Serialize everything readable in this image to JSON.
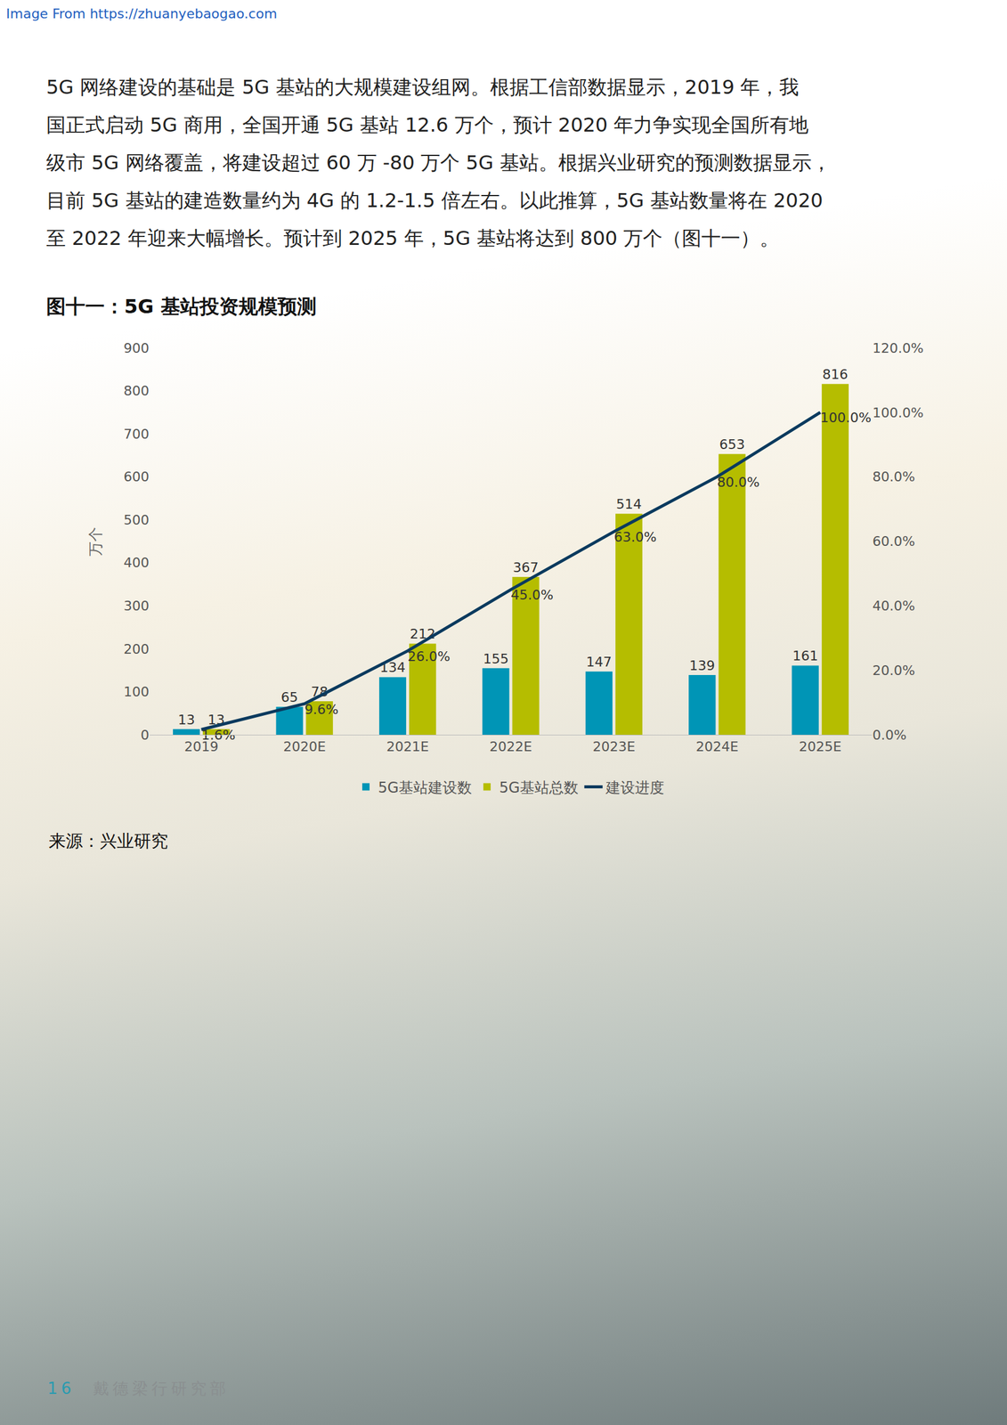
{
  "header": "Image From https://zhuanyebaogao.com",
  "paragraph": [
    "5G 网络建设的基础是 5G 基站的大规模建设组网。根据工信部数据显示，2019 年，我",
    "国正式启动 5G 商用，全国开通 5G 基站 12.6 万个，预计 2020 年力争实现全国所有地",
    "级市 5G 网络覆盖，将建设超过 60 万 -80 万个 5G 基站。根据兴业研究的预测数据显示，",
    "目前 5G 基站的建造数量约为 4G 的 1.2-1.5 倍左右。以此推算，5G 基站数量将在 2020",
    "至 2022 年迎来大幅增长。预计到 2025 年，5G 基站将达到 800 万个（图十一）。"
  ],
  "chart_data": {
    "type": "bar",
    "title": "图十一：5G 基站投资规模预测",
    "y_label": "万个",
    "categories": [
      "2019",
      "2020E",
      "2021E",
      "2022E",
      "2023E",
      "2024E",
      "2025E"
    ],
    "series": [
      {
        "name": "5G基站建设数",
        "type": "bar",
        "color": "#0095b6",
        "values": [
          13,
          65,
          134,
          155,
          147,
          139,
          161
        ]
      },
      {
        "name": "5G基站总数",
        "type": "bar",
        "color": "#b5bd00",
        "values": [
          13,
          78,
          212,
          367,
          514,
          653,
          816
        ]
      },
      {
        "name": "建设进度",
        "type": "line",
        "color": "#0b3a5e",
        "axis": "y2",
        "values": [
          1.6,
          9.6,
          26,
          45,
          63,
          80,
          100
        ],
        "value_labels": [
          "1.6%",
          "9.6%",
          "26.0%",
          "45.0%",
          "63.0%",
          "80.0%",
          "100.0%"
        ]
      }
    ],
    "ylim": [
      0,
      900
    ],
    "yticks": [
      0,
      100,
      200,
      300,
      400,
      500,
      600,
      700,
      800,
      900
    ],
    "y2lim": [
      0,
      120
    ],
    "y2ticks": [
      {
        "value": 0,
        "label": "0.0%"
      },
      {
        "value": 20,
        "label": "20.0%"
      },
      {
        "value": 40,
        "label": "40.0%"
      },
      {
        "value": 60,
        "label": "60.0%"
      },
      {
        "value": 80,
        "label": "80.0%"
      },
      {
        "value": 100,
        "label": "100.0%"
      },
      {
        "value": 120,
        "label": "120.0%"
      }
    ],
    "grid": false,
    "legend": "bottom",
    "data_labels": true
  },
  "source": "来源：兴业研究",
  "footer": {
    "page": "16",
    "org": "戴德梁行研究部"
  }
}
